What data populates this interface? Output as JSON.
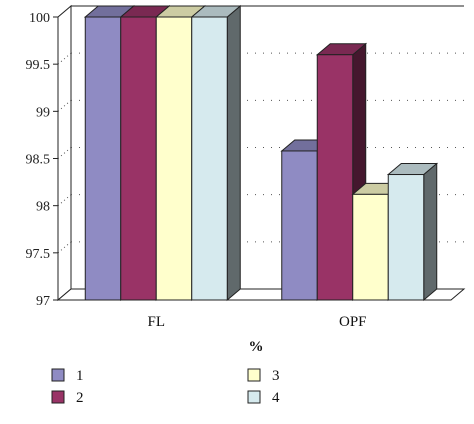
{
  "chart_data": {
    "type": "bar",
    "style": "3d-clustered-column",
    "categories": [
      "FL",
      "OPF"
    ],
    "series": [
      {
        "name": "1",
        "values": [
          100,
          98.58
        ],
        "color": "#8f8bc3"
      },
      {
        "name": "2",
        "values": [
          100,
          99.6
        ],
        "color": "#993366"
      },
      {
        "name": "3",
        "values": [
          100,
          98.12
        ],
        "color": "#ffffcc"
      },
      {
        "name": "4",
        "values": [
          100,
          98.33
        ],
        "color": "#d6eaee"
      }
    ],
    "title": "",
    "xlabel": "%",
    "ylabel": "",
    "ylim": [
      97,
      100
    ],
    "yticks": [
      "97",
      "97.5",
      "98",
      "98.5",
      "99",
      "99.5",
      "100"
    ],
    "grid": "dotted horizontal",
    "legend_position": "bottom"
  }
}
